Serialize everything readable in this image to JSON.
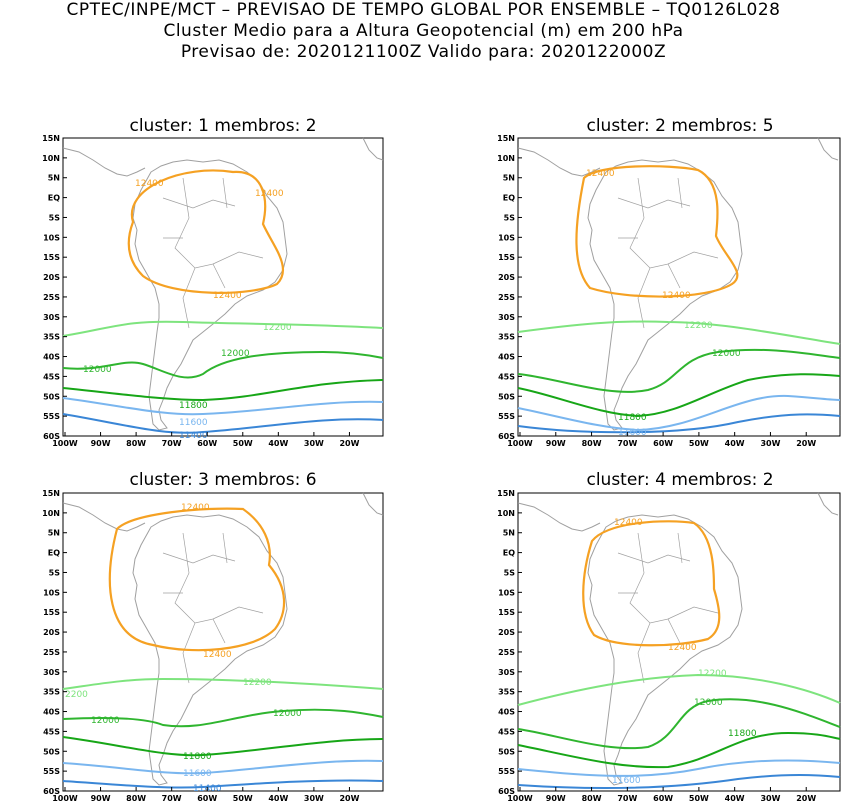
{
  "header": {
    "line1": "CPTEC/INPE/MCT – PREVISAO DE TEMPO GLOBAL POR ENSEMBLE – TQ0126L028",
    "line2": "Cluster Medio para a Altura Geopotencial (m) em 200 hPa",
    "line3": "Previsao de: 2020121100Z    Valido para: 2020122000Z"
  },
  "axes": {
    "lat_labels": [
      "15N",
      "10N",
      "5N",
      "EQ",
      "5S",
      "10S",
      "15S",
      "20S",
      "25S",
      "30S",
      "35S",
      "40S",
      "45S",
      "50S",
      "55S",
      "60S"
    ],
    "lon_labels": [
      "100W",
      "90W",
      "80W",
      "70W",
      "60W",
      "50W",
      "40W",
      "30W",
      "20W"
    ]
  },
  "colors": {
    "c12400": "#f5a123",
    "c12200": "#7ee47e",
    "c12000": "#2fb52f",
    "c11800": "#17a617",
    "c11600": "#7ab6ef",
    "c11400": "#3a86d6",
    "land": "#a0a0a0"
  },
  "panels": [
    {
      "title": "cluster:  1   membros:  2",
      "contour_labels": [
        "12400",
        "12400",
        "12400",
        "12200",
        "12000",
        "12000",
        "11800",
        "11600",
        "11400"
      ]
    },
    {
      "title": "cluster:  2   membros:  5",
      "contour_labels": [
        "12400",
        "12400",
        "12200",
        "12000",
        "11800",
        "11600"
      ]
    },
    {
      "title": "cluster:  3   membros:  6",
      "contour_labels": [
        "12400",
        "12400",
        "2200",
        "12200",
        "12000",
        "12000",
        "11800",
        "11600",
        "11400"
      ]
    },
    {
      "title": "cluster:  4   membros:  2",
      "contour_labels": [
        "12400",
        "12400",
        "12200",
        "12000",
        "11800",
        "11600"
      ]
    }
  ]
}
